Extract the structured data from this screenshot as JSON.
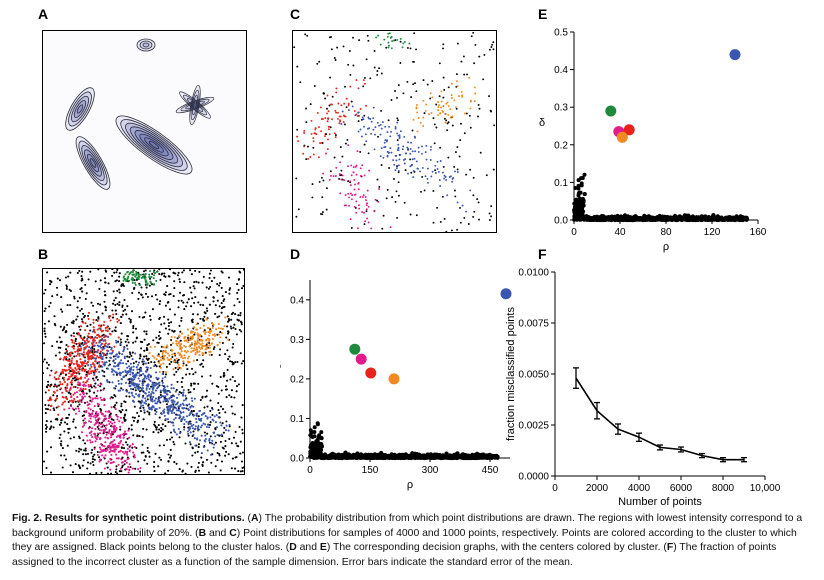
{
  "panels": {
    "a": {
      "label": "A"
    },
    "b": {
      "label": "B"
    },
    "c": {
      "label": "C"
    },
    "d": {
      "label": "D"
    },
    "e": {
      "label": "E"
    },
    "f": {
      "label": "F"
    }
  },
  "colors": {
    "red": "#e8231b",
    "blue": "#3a56b0",
    "green": "#1f8a3c",
    "orange": "#f28a22",
    "magenta": "#e31a8c",
    "black": "#000000",
    "contour": "#2b2b3a",
    "contour_fill": "#6d76b8"
  },
  "chart_data": [
    {
      "id": "D",
      "type": "scatter",
      "title": "",
      "xlabel": "ρ",
      "ylabel": "δ",
      "xlim": [
        0,
        500
      ],
      "ylim": [
        0,
        0.45
      ],
      "xticks": [
        0,
        150,
        300,
        450
      ],
      "yticks": [
        0.0,
        0.1,
        0.2,
        0.3,
        0.4
      ],
      "ytick_labels": [
        "0.0",
        "0.1",
        "0.2",
        "0.3",
        "0.4"
      ],
      "centers": [
        {
          "cluster": "blue",
          "x": 490,
          "y": 0.415
        },
        {
          "cluster": "green",
          "x": 112,
          "y": 0.275
        },
        {
          "cluster": "magenta",
          "x": 128,
          "y": 0.25
        },
        {
          "cluster": "red",
          "x": 152,
          "y": 0.215
        },
        {
          "cluster": "orange",
          "x": 210,
          "y": 0.2
        }
      ],
      "halo_note": "dense black points near delta 0"
    },
    {
      "id": "E",
      "type": "scatter",
      "title": "",
      "xlabel": "ρ",
      "ylabel": "δ",
      "xlim": [
        0,
        160
      ],
      "ylim": [
        0,
        0.5
      ],
      "xticks": [
        0,
        40,
        80,
        120,
        160
      ],
      "yticks": [
        0.0,
        0.1,
        0.2,
        0.3,
        0.4,
        0.5
      ],
      "ytick_labels": [
        "0.0",
        "0.1",
        "0.2",
        "0.3",
        "0.4",
        "0.5"
      ],
      "centers": [
        {
          "cluster": "blue",
          "x": 140,
          "y": 0.44
        },
        {
          "cluster": "green",
          "x": 32,
          "y": 0.29
        },
        {
          "cluster": "magenta",
          "x": 39,
          "y": 0.235
        },
        {
          "cluster": "red",
          "x": 48,
          "y": 0.24
        },
        {
          "cluster": "orange",
          "x": 42,
          "y": 0.22
        }
      ]
    },
    {
      "id": "F",
      "type": "line",
      "title": "",
      "xlabel": "Number of points",
      "ylabel": "fraction misclassified points",
      "xlim": [
        0,
        10000
      ],
      "ylim": [
        0,
        0.01
      ],
      "xticks": [
        0,
        2000,
        4000,
        6000,
        8000,
        10000
      ],
      "xtick_labels": [
        "0",
        "2000",
        "4000",
        "6000",
        "8000",
        "10,000"
      ],
      "yticks": [
        0.0,
        0.0025,
        0.005,
        0.0075,
        0.01
      ],
      "ytick_labels": [
        "0.0000",
        "0.0025",
        "0.0050",
        "0.0075",
        "0.0100"
      ],
      "x": [
        1000,
        2000,
        3000,
        4000,
        5000,
        6000,
        7000,
        8000,
        9000
      ],
      "values": [
        0.0048,
        0.0032,
        0.0023,
        0.0019,
        0.0014,
        0.0013,
        0.001,
        0.0008,
        0.0008
      ],
      "errors": [
        0.0005,
        0.0004,
        0.00025,
        0.0002,
        0.00012,
        0.00012,
        0.0001,
        0.0001,
        0.0001
      ]
    }
  ],
  "caption": {
    "title": "Fig. 2. Results for synthetic point distributions.",
    "segments": [
      {
        "t": " (",
        "b": false
      },
      {
        "t": "A",
        "b": true
      },
      {
        "t": ") The probability distribution from which point distributions are drawn. The regions with lowest intensity correspond to a background uniform probability of 20%. (",
        "b": false
      },
      {
        "t": "B",
        "b": true
      },
      {
        "t": " and ",
        "b": false
      },
      {
        "t": "C",
        "b": true
      },
      {
        "t": ") Point distributions for samples of 4000 and 1000 points, respectively. Points are colored according to the cluster to which they are assigned. Black points belong to the cluster halos. (",
        "b": false
      },
      {
        "t": "D",
        "b": true
      },
      {
        "t": " and ",
        "b": false
      },
      {
        "t": "E",
        "b": true
      },
      {
        "t": ") The corresponding decision graphs, with the centers colored by cluster. (",
        "b": false
      },
      {
        "t": "F",
        "b": true
      },
      {
        "t": ") The fraction of points assigned to the incorrect cluster as a function of the sample dimension. Error bars indicate the standard error of the mean.",
        "b": false
      }
    ]
  }
}
